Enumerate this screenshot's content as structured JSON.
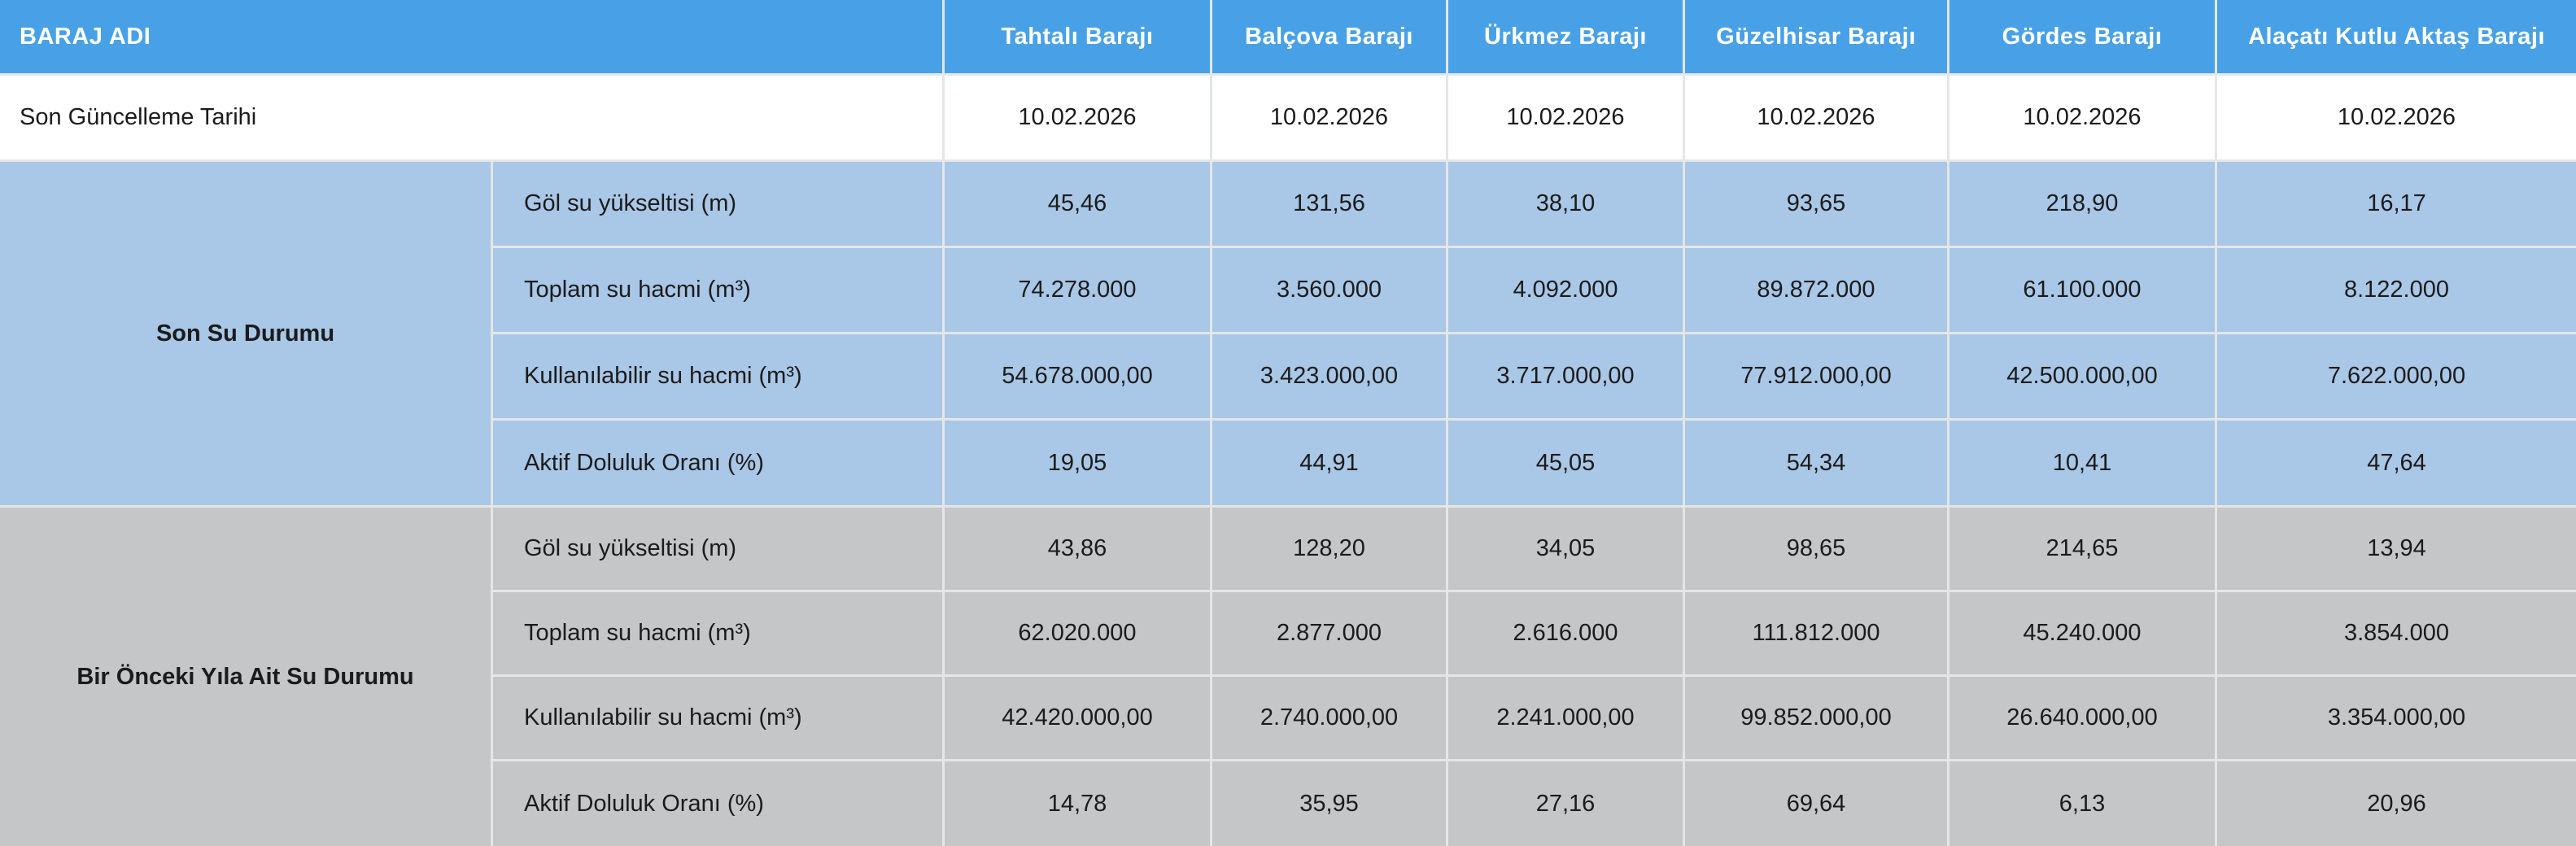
{
  "colors": {
    "header_bg": "#48a1e7",
    "header_text": "#ffffff",
    "section_recent_bg": "#a9c7e6",
    "section_previous_bg": "#c5c6c7",
    "divider": "#e4e6e8",
    "body_text": "#1b1b1b"
  },
  "table": {
    "header": {
      "row_label_header": "BARAJ ADI",
      "columns": [
        "Tahtalı Barajı",
        "Balçova Barajı",
        "Ürkmez Barajı",
        "Güzelhisar Barajı",
        "Gördes Barajı",
        "Alaçatı Kutlu Aktaş Barajı"
      ]
    },
    "update_row": {
      "label": "Son Güncelleme Tarihi",
      "values": [
        "10.02.2026",
        "10.02.2026",
        "10.02.2026",
        "10.02.2026",
        "10.02.2026",
        "10.02.2026"
      ]
    },
    "sections": [
      {
        "title": "Son Su Durumu",
        "rows": [
          {
            "label": "Göl su yükseltisi (m)",
            "values": [
              "45,46",
              "131,56",
              "38,10",
              "93,65",
              "218,90",
              "16,17"
            ]
          },
          {
            "label": "Toplam su hacmi (m³)",
            "values": [
              "74.278.000",
              "3.560.000",
              "4.092.000",
              "89.872.000",
              "61.100.000",
              "8.122.000"
            ]
          },
          {
            "label": "Kullanılabilir su hacmi (m³)",
            "values": [
              "54.678.000,00",
              "3.423.000,00",
              "3.717.000,00",
              "77.912.000,00",
              "42.500.000,00",
              "7.622.000,00"
            ]
          },
          {
            "label": "Aktif Doluluk Oranı (%)",
            "values": [
              "19,05",
              "44,91",
              "45,05",
              "54,34",
              "10,41",
              "47,64"
            ]
          }
        ]
      },
      {
        "title": "Bir Önceki Yıla Ait Su Durumu",
        "rows": [
          {
            "label": "Göl su yükseltisi (m)",
            "values": [
              "43,86",
              "128,20",
              "34,05",
              "98,65",
              "214,65",
              "13,94"
            ]
          },
          {
            "label": "Toplam su hacmi (m³)",
            "values": [
              "62.020.000",
              "2.877.000",
              "2.616.000",
              "111.812.000",
              "45.240.000",
              "3.854.000"
            ]
          },
          {
            "label": "Kullanılabilir su hacmi (m³)",
            "values": [
              "42.420.000,00",
              "2.740.000,00",
              "2.241.000,00",
              "99.852.000,00",
              "26.640.000,00",
              "3.354.000,00"
            ]
          },
          {
            "label": "Aktif Doluluk Oranı (%)",
            "values": [
              "14,78",
              "35,95",
              "27,16",
              "69,64",
              "6,13",
              "20,96"
            ]
          }
        ]
      }
    ]
  }
}
